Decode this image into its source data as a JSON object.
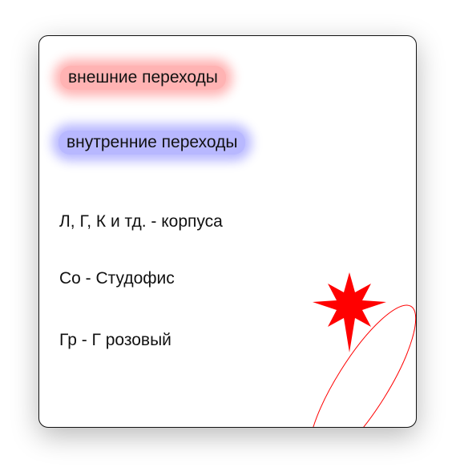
{
  "legend": {
    "external_label": "внешние переходы",
    "internal_label": "внутренние переходы",
    "lines": [
      "Л, Г, К и тд. - корпуса",
      "Со - Студофис",
      "Гр - Г розовый"
    ]
  },
  "colors": {
    "external_highlight": "#ffb3b3",
    "internal_highlight": "#b8b8ff",
    "star": "#ff0000",
    "ellipse_stroke": "#ff0000"
  },
  "decorations": [
    "red-star-icon",
    "red-ellipse-outline"
  ]
}
